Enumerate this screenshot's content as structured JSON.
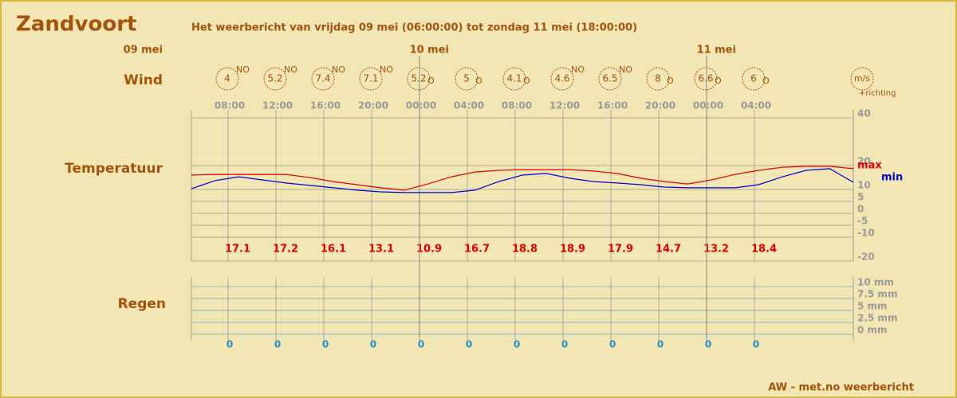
{
  "title": "Zandvoort",
  "subtitle": "Het weerbericht van vrijdag 09 mei (06:00:00) tot zondag 11 mei (18:00:00)",
  "days": [
    "09 mei",
    "10 mei",
    "11 mei"
  ],
  "wind": {
    "label": "Wind",
    "speeds": [
      4,
      5.2,
      7.4,
      7.1,
      5.2,
      5,
      4.1,
      4.6,
      6.5,
      8,
      6.6,
      6
    ],
    "directions": [
      "NO",
      "NO",
      "NO",
      "NO",
      "O",
      "O",
      "O",
      "NO",
      "NO",
      "O",
      "O",
      "O"
    ],
    "unit": "m/s",
    "unit_note": "+richting"
  },
  "times": [
    "08:00",
    "12:00",
    "16:00",
    "20:00",
    "00:00",
    "04:00",
    "08:00",
    "12:00",
    "16:00",
    "20:00",
    "00:00",
    "04:00"
  ],
  "temperature": {
    "label": "Temperatuur",
    "ylim": [
      -20,
      40
    ],
    "yticks": [
      40,
      20,
      10,
      5,
      0,
      -5,
      -10,
      -20
    ],
    "series": [
      {
        "name": "max",
        "color": "#e00000",
        "values": [
          16,
          16.3,
          16.3,
          16.3,
          16.3,
          15,
          13.3,
          12,
          10.7,
          9.7,
          12.3,
          15.3,
          17.3,
          18,
          18.3,
          18.3,
          18.3,
          17.7,
          16.7,
          14.7,
          13.3,
          12.3,
          14,
          16.3,
          18,
          19.3,
          19.7,
          19.7,
          18.7
        ]
      },
      {
        "name": "min",
        "color": "#0000d0",
        "values": [
          10.3,
          13.7,
          15.3,
          14,
          12.7,
          11.7,
          10.7,
          9.7,
          9,
          8.7,
          8.7,
          8.7,
          9.7,
          13.3,
          16,
          16.7,
          14.7,
          13.3,
          12.7,
          12,
          11,
          10.7,
          10.7,
          10.7,
          12,
          15.3,
          18,
          18.7,
          13
        ]
      }
    ],
    "values": [
      17.1,
      17.2,
      16.1,
      13.1,
      10.9,
      16.7,
      18.8,
      18.9,
      17.9,
      14.7,
      13.2,
      18.4
    ]
  },
  "rain": {
    "label": "Regen",
    "ylim": [
      0,
      10
    ],
    "yticks": [
      {
        "value": 10,
        "label": "10 mm"
      },
      {
        "value": 7.5,
        "label": "7.5 mm"
      },
      {
        "value": 5,
        "label": "5 mm"
      },
      {
        "value": 2.5,
        "label": "2.5 mm"
      },
      {
        "value": 0,
        "label": "0 mm"
      }
    ],
    "values": [
      0,
      0,
      0,
      0,
      0,
      0,
      0,
      0,
      0,
      0,
      0,
      0
    ]
  },
  "footer": "AW - met.no weerbericht"
}
